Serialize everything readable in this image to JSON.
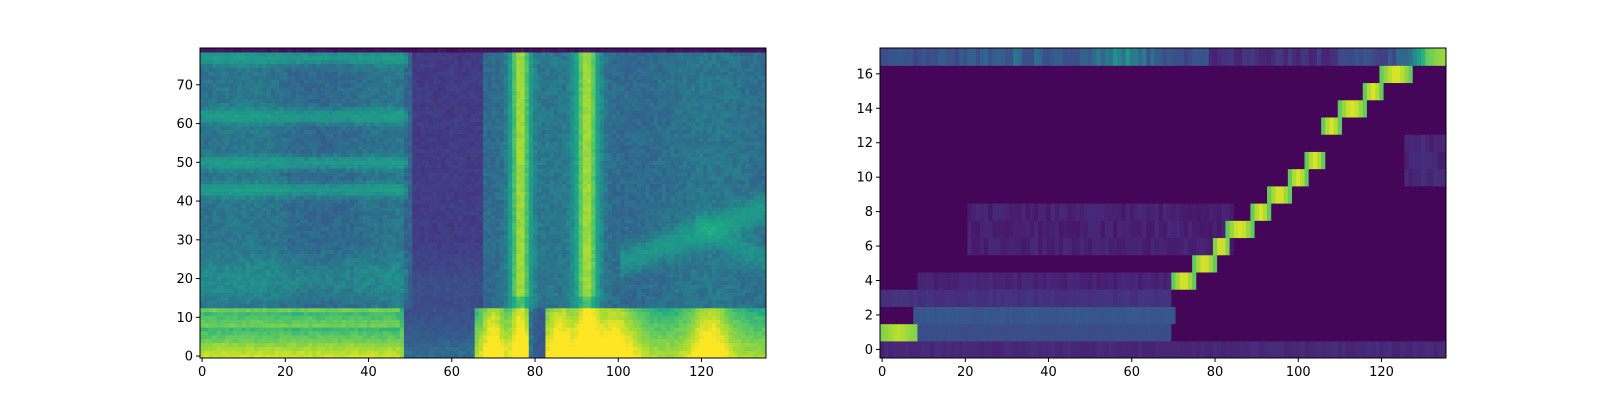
{
  "chart_data": [
    {
      "type": "heatmap",
      "title": "",
      "xlabel": "",
      "ylabel": "",
      "xlim": [
        -0.5,
        135.5
      ],
      "ylim": [
        -0.5,
        79.5
      ],
      "origin": "lower",
      "colormap": "viridis",
      "n_cols": 136,
      "n_rows": 80,
      "x_ticks": [
        0,
        20,
        40,
        60,
        80,
        100,
        120
      ],
      "y_ticks": [
        0,
        10,
        20,
        30,
        40,
        50,
        60,
        70
      ],
      "x_tick_labels": [
        "0",
        "20",
        "40",
        "60",
        "80",
        "100",
        "120"
      ],
      "y_tick_labels": [
        "0",
        "10",
        "20",
        "30",
        "40",
        "50",
        "60",
        "70"
      ],
      "description_values": {
        "bright_low_band_rows": [
          0,
          12
        ],
        "silent_segment_cols": [
          50,
          68
        ],
        "vertical_bright_streaks_cols": [
          76,
          92
        ],
        "harmonic_rows": [
          43,
          50,
          62,
          77
        ]
      }
    },
    {
      "type": "heatmap",
      "title": "",
      "xlabel": "",
      "ylabel": "",
      "xlim": [
        -0.5,
        135.5
      ],
      "ylim": [
        -0.5,
        17.5
      ],
      "origin": "lower",
      "colormap": "viridis",
      "n_cols": 136,
      "n_rows": 18,
      "x_ticks": [
        0,
        20,
        40,
        60,
        80,
        100,
        120
      ],
      "y_ticks": [
        0,
        2,
        4,
        6,
        8,
        10,
        12,
        14,
        16
      ],
      "x_tick_labels": [
        "0",
        "20",
        "40",
        "60",
        "80",
        "100",
        "120"
      ],
      "y_tick_labels": [
        "0",
        "2",
        "4",
        "6",
        "8",
        "10",
        "12",
        "14",
        "16"
      ],
      "alignment_path": [
        {
          "row": 1,
          "col_start": 0,
          "col_end": 8
        },
        {
          "row": 2,
          "col_start": 8,
          "col_end": 70
        },
        {
          "row": 4,
          "col_start": 70,
          "col_end": 75
        },
        {
          "row": 5,
          "col_start": 75,
          "col_end": 80
        },
        {
          "row": 6,
          "col_start": 80,
          "col_end": 83
        },
        {
          "row": 7,
          "col_start": 83,
          "col_end": 89
        },
        {
          "row": 8,
          "col_start": 89,
          "col_end": 93
        },
        {
          "row": 9,
          "col_start": 93,
          "col_end": 98
        },
        {
          "row": 10,
          "col_start": 98,
          "col_end": 102
        },
        {
          "row": 11,
          "col_start": 102,
          "col_end": 106
        },
        {
          "row": 13,
          "col_start": 106,
          "col_end": 110
        },
        {
          "row": 14,
          "col_start": 110,
          "col_end": 116
        },
        {
          "row": 15,
          "col_start": 116,
          "col_end": 120
        },
        {
          "row": 16,
          "col_start": 120,
          "col_end": 127
        },
        {
          "row": 17,
          "col_start": 127,
          "col_end": 135
        }
      ]
    }
  ]
}
